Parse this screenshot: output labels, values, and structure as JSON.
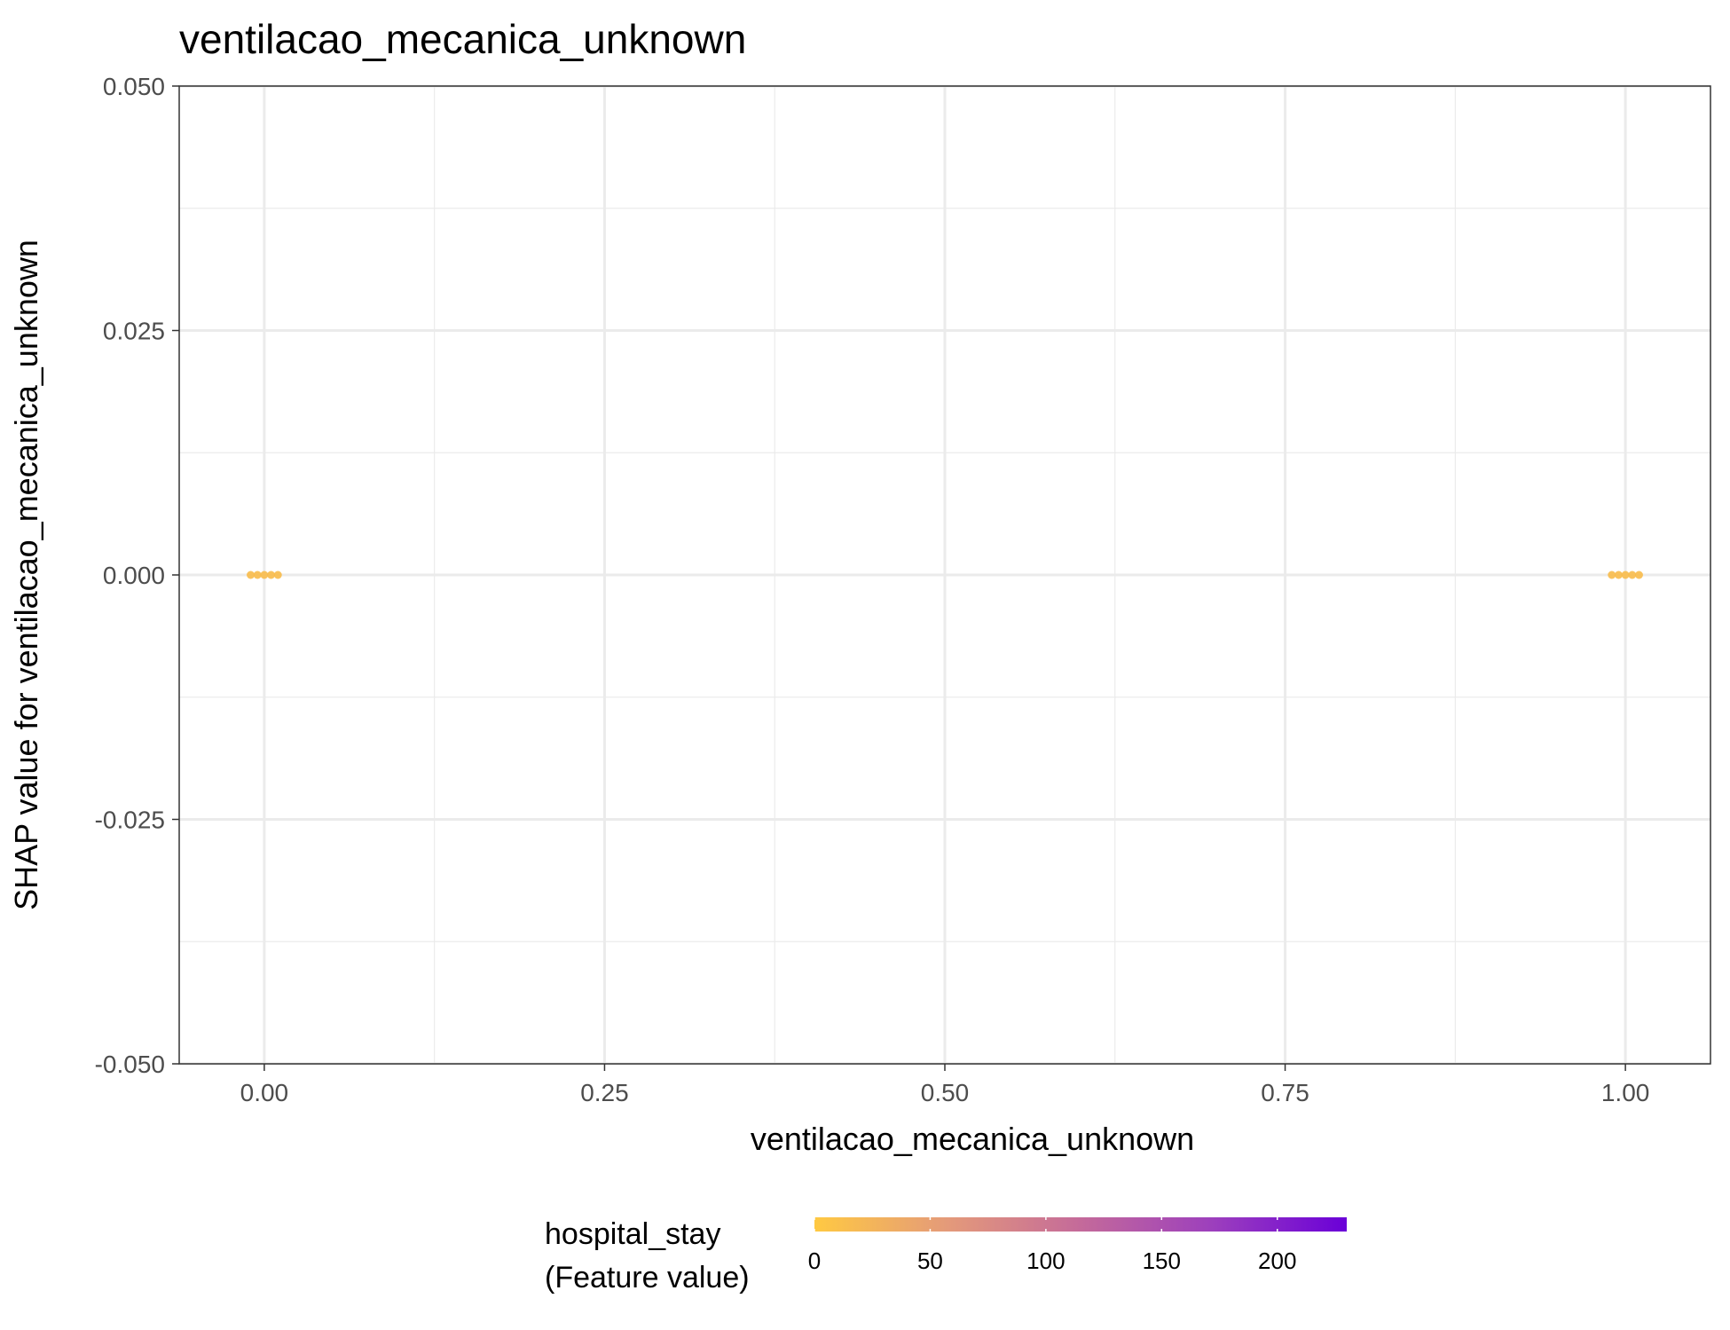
{
  "chart_data": {
    "type": "scatter",
    "title": "ventilacao_mecanica_unknown",
    "xlabel": "ventilacao_mecanica_unknown",
    "ylabel": "SHAP value for ventilacao_mecanica_unknown",
    "xlim": [
      -0.0625,
      1.0625
    ],
    "ylim": [
      -0.05,
      0.05
    ],
    "x_ticks": [
      0,
      0.25,
      0.5,
      0.75,
      1
    ],
    "x_tick_labels": [
      "0.00",
      "0.25",
      "0.50",
      "0.75",
      "1.00"
    ],
    "y_ticks": [
      -0.05,
      -0.025,
      0,
      0.025,
      0.05
    ],
    "y_tick_labels": [
      "-0.050",
      "-0.025",
      "0.000",
      "0.025",
      "0.050"
    ],
    "grid": true,
    "points": [
      {
        "x": -0.01,
        "y": 0,
        "color_value": 1
      },
      {
        "x": -0.005,
        "y": 0,
        "color_value": 2
      },
      {
        "x": 0.0,
        "y": 0,
        "color_value": 3
      },
      {
        "x": 0.005,
        "y": 0,
        "color_value": 2
      },
      {
        "x": 0.01,
        "y": 0,
        "color_value": 1
      },
      {
        "x": 0.99,
        "y": 0,
        "color_value": 2
      },
      {
        "x": 0.995,
        "y": 0,
        "color_value": 3
      },
      {
        "x": 1.0,
        "y": 0,
        "color_value": 2
      },
      {
        "x": 1.005,
        "y": 0,
        "color_value": 1
      },
      {
        "x": 1.01,
        "y": 0,
        "color_value": 2
      }
    ],
    "point_color": "#f8bb4a",
    "legend": {
      "title_line1": "hospital_stay",
      "title_line2": "(Feature value)",
      "placement": "bottom",
      "range": [
        0,
        230
      ],
      "ticks": [
        0,
        50,
        100,
        150,
        200
      ],
      "tick_labels": [
        "0",
        "50",
        "100",
        "150",
        "200"
      ],
      "gradient": [
        "#ffc942",
        "#e49a7a",
        "#c46a9a",
        "#9c3fbd",
        "#6a00d8"
      ]
    }
  }
}
